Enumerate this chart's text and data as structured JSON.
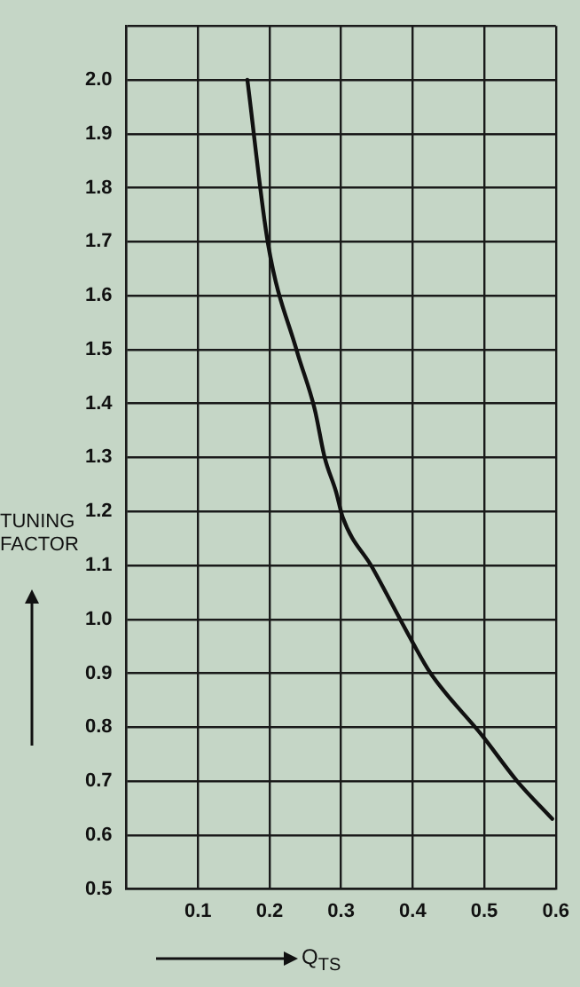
{
  "chart_data": {
    "type": "line",
    "xlabel": "Q$_{TS}$",
    "ylabel": "TUNING FACTOR",
    "series": [
      {
        "color": "#111111",
        "x": [
          0.169,
          0.198,
          0.238,
          0.263,
          0.277,
          0.293,
          0.302,
          0.344,
          0.4,
          0.425,
          0.498,
          0.546,
          0.595
        ],
        "values": [
          2.0,
          1.695,
          1.498,
          1.39,
          1.3,
          1.236,
          1.19,
          1.095,
          0.957,
          0.9,
          0.783,
          0.7,
          0.63
        ]
      }
    ],
    "xlim": [
      0,
      0.6
    ],
    "xticks": [
      {
        "value": 0,
        "label": null
      },
      0.1,
      0.2,
      0.3,
      0.4,
      0.5,
      0.6
    ],
    "ylim": [
      0.5,
      2.1
    ],
    "yticks": [
      0.5,
      0.6,
      0.7,
      0.8,
      0.9,
      {
        "value": 1,
        "label": "1.0"
      },
      1.1,
      1.2,
      1.3,
      1.4,
      1.5,
      1.6,
      1.7,
      1.8,
      1.9,
      {
        "value": 2,
        "label": "2.0"
      },
      {
        "value": 2.1,
        "label": null
      }
    ],
    "grid": true,
    "legend": false,
    "marker": "none",
    "line_style": "solid"
  }
}
